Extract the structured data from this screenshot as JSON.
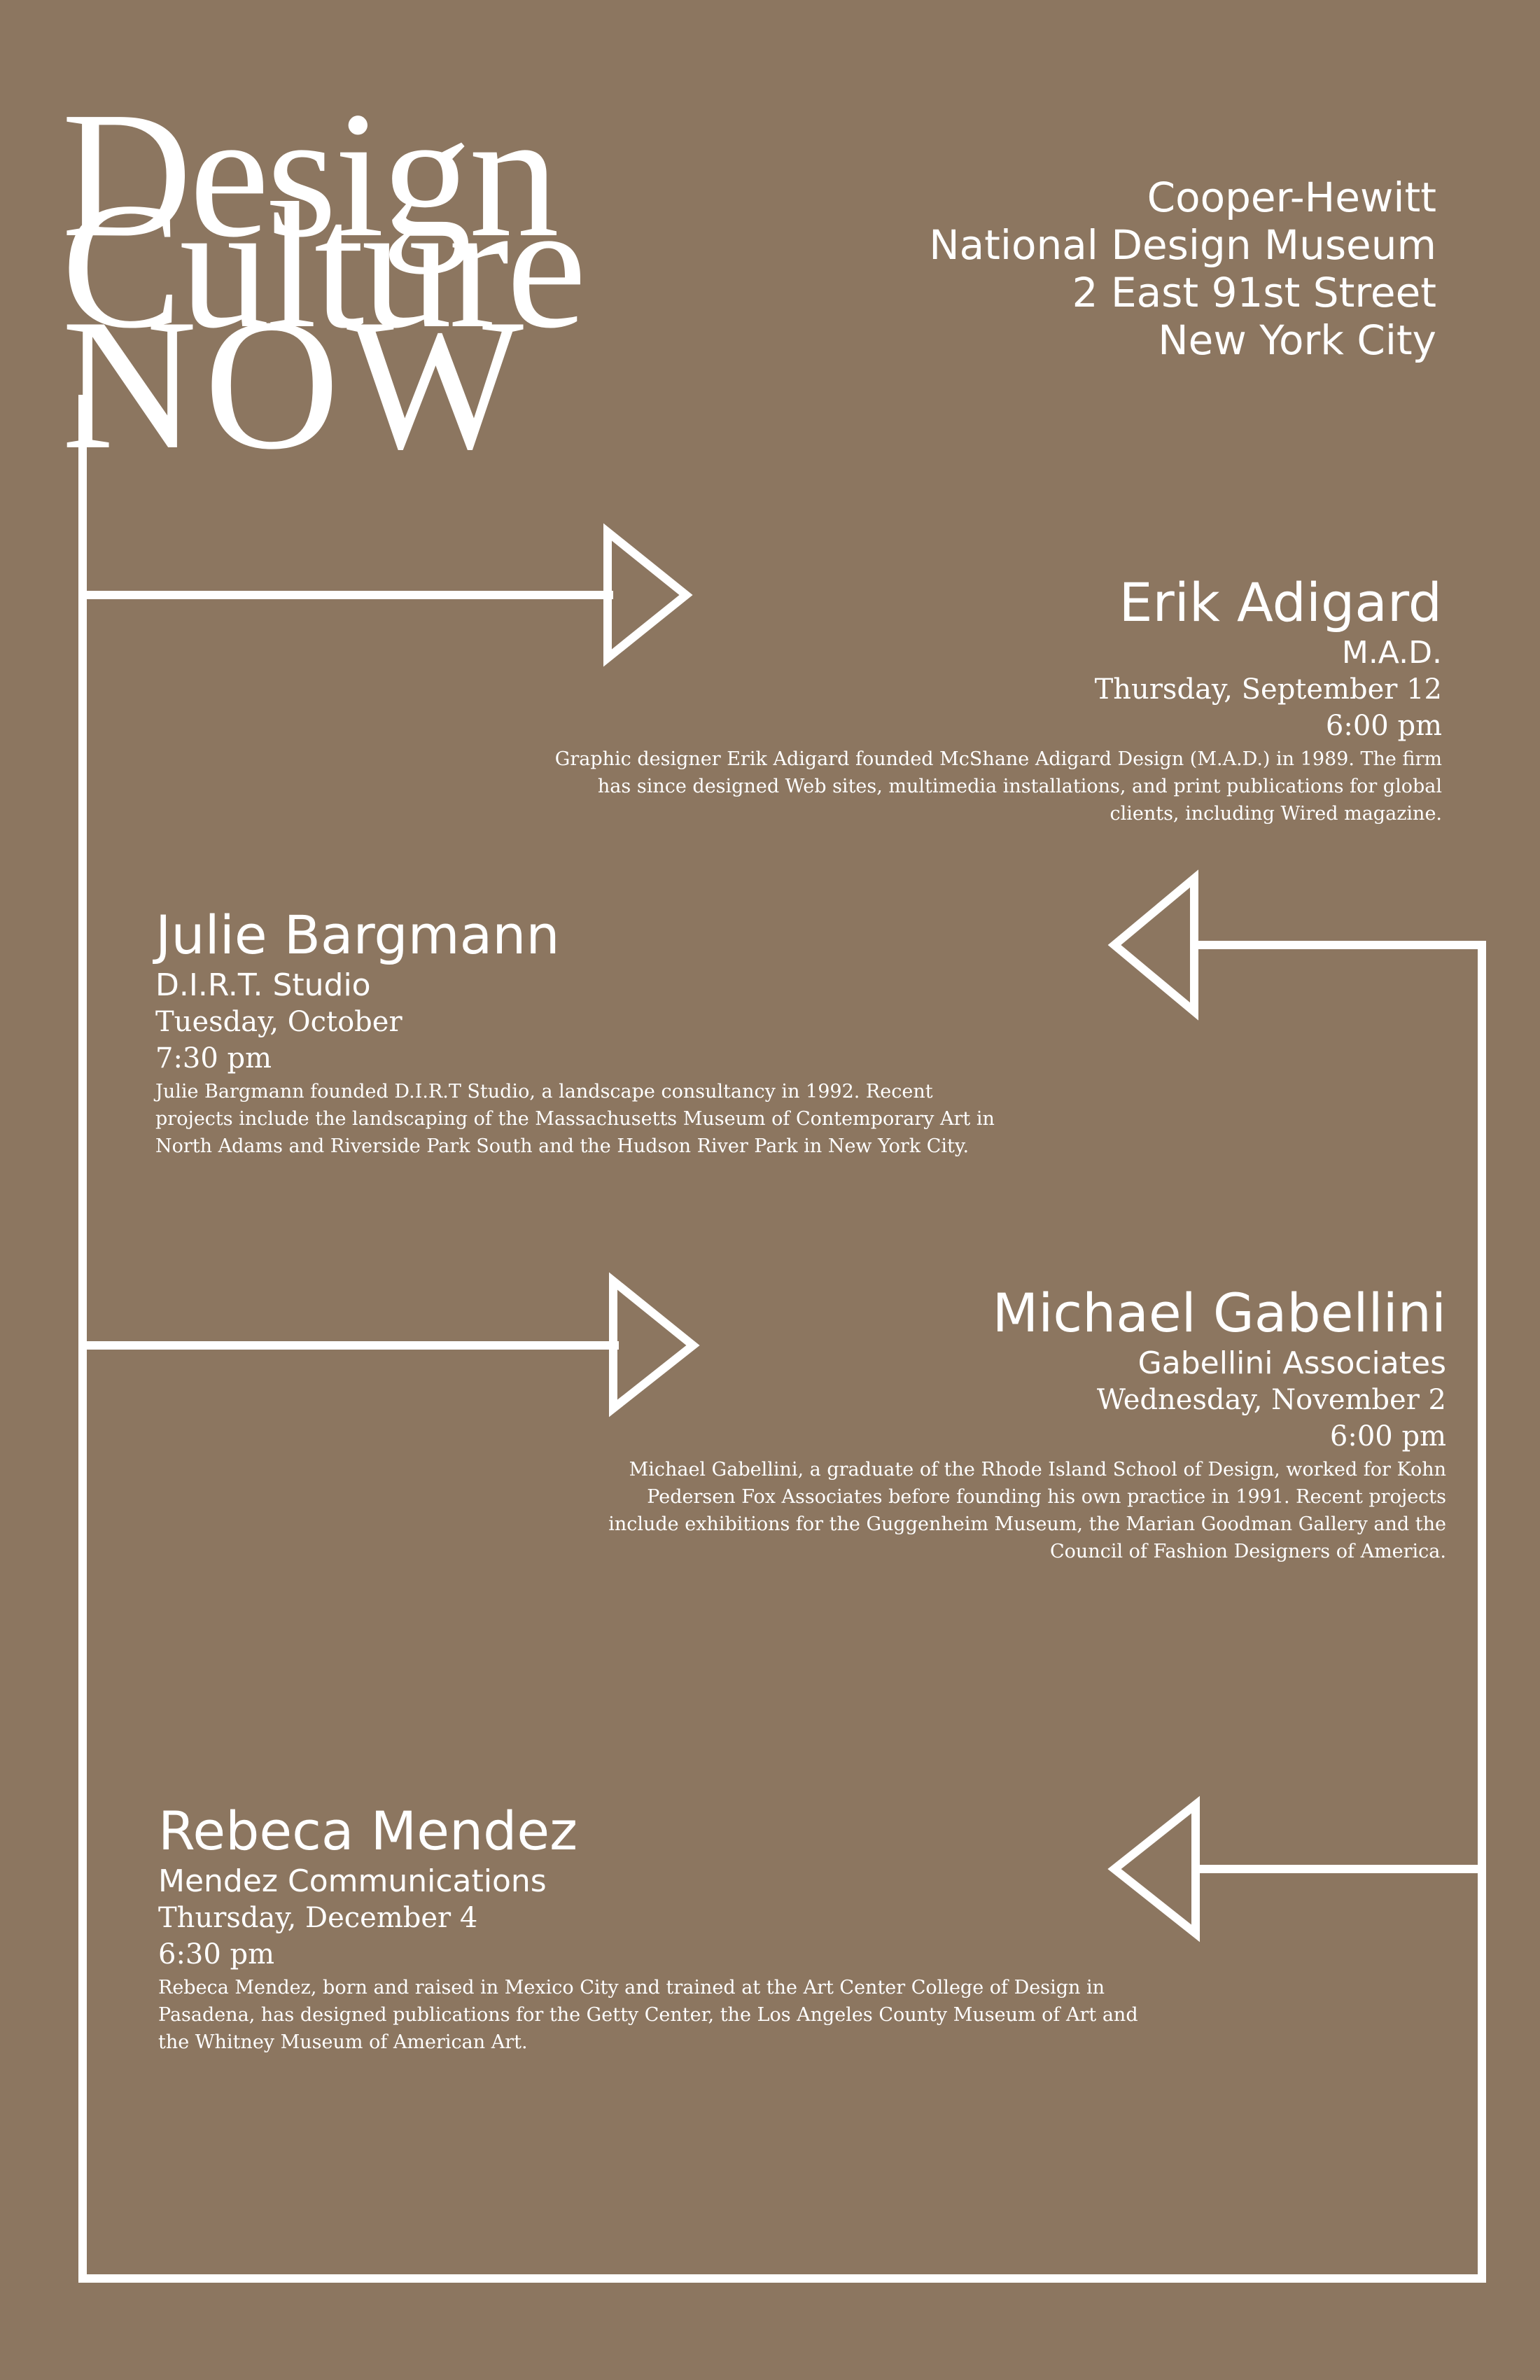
{
  "title": {
    "line1": "Design",
    "line2": "Culture",
    "line3": "NOW"
  },
  "venue": {
    "line1": "Cooper-Hewitt",
    "line2": "National Design Museum",
    "line3": "2 East 91st Street",
    "line4": "New York City"
  },
  "events": [
    {
      "name": "Erik Adigard",
      "org": "M.A.D.",
      "date": "Thursday, September 12",
      "time": "6:00 pm",
      "description": "Graphic designer Erik Adigard founded McShane Adigard Design (M.A.D.) in 1989. The firm has since designed Web sites, multimedia installations, and print publications for global clients, including Wired magazine."
    },
    {
      "name": "Julie Bargmann",
      "org": "D.I.R.T. Studio",
      "date": "Tuesday, October",
      "time": "7:30 pm",
      "description": "Julie Bargmann founded D.I.R.T Studio, a landscape consultancy in 1992. Recent projects include the landscaping of the Massachusetts Museum of Contemporary Art in North Adams and Riverside Park South and the Hudson River Park in New York City."
    },
    {
      "name": "Michael Gabellini",
      "org": "Gabellini Associates",
      "date": "Wednesday, November 2",
      "time": "6:00 pm",
      "description": "Michael Gabellini, a graduate of the Rhode Island School of Design, worked for Kohn Pedersen Fox Associates before founding his own practice in  1991. Recent projects include exhibitions for the Guggenheim Museum, the Marian Goodman Gallery and the Council of Fashion Designers of America."
    },
    {
      "name": "Rebeca Mendez",
      "org": "Mendez Communications",
      "date": "Thursday, December 4",
      "time": "6:30 pm",
      "description": "Rebeca Mendez, born and raised in Mexico City and trained at the Art Center College of Design in Pasadena, has designed publications for the Getty Center, the Los Angeles County Museum of Art and the Whitney Museum of American Art."
    }
  ],
  "colors": {
    "background": "#8c7660",
    "foreground": "#ffffff"
  }
}
